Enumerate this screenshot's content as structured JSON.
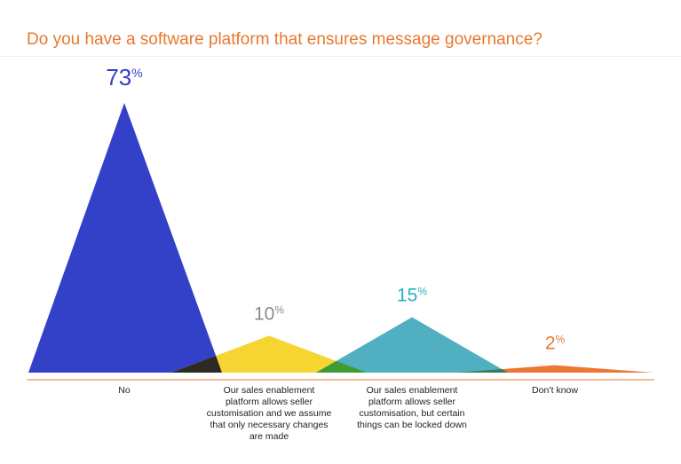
{
  "title": "Do you have a software platform that ensures message governance?",
  "chart_data": {
    "type": "area",
    "shape": "triangle-peaks",
    "title": "Do you have a software platform that ensures message governance?",
    "value_suffix": "%",
    "ylim": [
      0,
      73
    ],
    "grid": false,
    "legend": "none",
    "categories": [
      [
        "No"
      ],
      [
        "Our sales enablement",
        "platform allows seller",
        "customisation and we assume",
        "that only necessary changes",
        "are made"
      ],
      [
        "Our sales enablement",
        "platform allows seller",
        "customisation, but certain",
        "things can be locked down"
      ],
      [
        "Don’t know"
      ]
    ],
    "values": [
      73,
      10,
      15,
      2
    ],
    "value_labels": [
      "73",
      "10",
      "15",
      "2"
    ],
    "colors": [
      "#3341c9",
      "#f6d533",
      "#50b0c2",
      "#ea7833"
    ],
    "label_colors": [
      "#3341c9",
      "#8a8a8a",
      "#2aaec2",
      "#ea7833"
    ]
  }
}
